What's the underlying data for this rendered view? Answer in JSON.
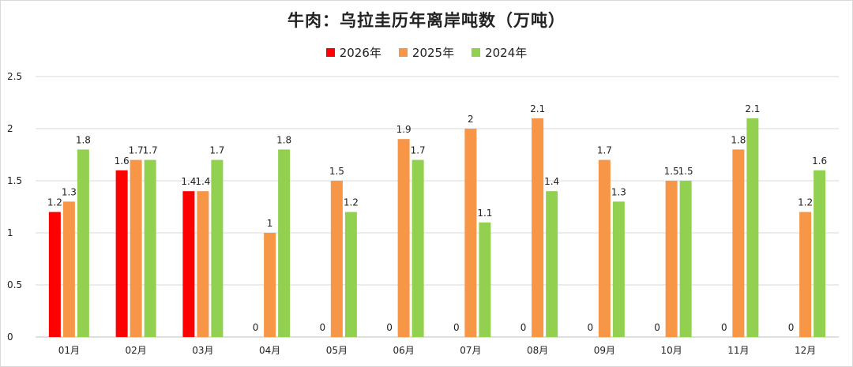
{
  "chart_data": {
    "type": "bar",
    "title": "牛肉：乌拉圭历年离岸吨数（万吨）",
    "xlabel": "",
    "ylabel": "",
    "ylim": [
      0,
      2.5
    ],
    "yticks": [
      "0",
      "0.5",
      "1",
      "1.5",
      "2",
      "2.5"
    ],
    "categories": [
      "01月",
      "02月",
      "03月",
      "04月",
      "05月",
      "06月",
      "07月",
      "08月",
      "09月",
      "10月",
      "11月",
      "12月"
    ],
    "series": [
      {
        "name": "2026年",
        "color": "#ff0000",
        "values": [
          1.2,
          1.6,
          1.4,
          0,
          0,
          0,
          0,
          0,
          0,
          0,
          0,
          0
        ]
      },
      {
        "name": "2025年",
        "color": "#f79646",
        "values": [
          1.3,
          1.7,
          1.4,
          1,
          1.5,
          1.9,
          2,
          2.1,
          1.7,
          1.5,
          1.8,
          1.2
        ]
      },
      {
        "name": "2024年",
        "color": "#92d050",
        "values": [
          1.8,
          1.7,
          1.7,
          1.8,
          1.2,
          1.7,
          1.1,
          1.4,
          1.3,
          1.5,
          2.1,
          1.6
        ]
      }
    ],
    "grid": true,
    "legend": "top-center"
  }
}
